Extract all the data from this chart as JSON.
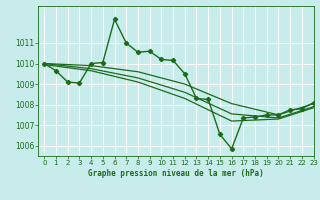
{
  "title": "Graphe pression niveau de la mer (hPa)",
  "bg_color": "#c8ecec",
  "grid_color": "#a8d8d8",
  "line_color": "#1a6b1a",
  "xlim": [
    -0.5,
    23
  ],
  "ylim": [
    1005.5,
    1012.8
  ],
  "yticks": [
    1006,
    1007,
    1008,
    1009,
    1010,
    1011
  ],
  "xticks": [
    0,
    1,
    2,
    3,
    4,
    5,
    6,
    7,
    8,
    9,
    10,
    11,
    12,
    13,
    14,
    15,
    16,
    17,
    18,
    19,
    20,
    21,
    22,
    23
  ],
  "line1_x": [
    0,
    1,
    2,
    3,
    4,
    5,
    6,
    7,
    8,
    9,
    10,
    11,
    12,
    13,
    14,
    15,
    16,
    17,
    18,
    19,
    20,
    21,
    22,
    23
  ],
  "line1_y": [
    1010.0,
    1009.65,
    1009.1,
    1009.05,
    1010.0,
    1010.05,
    1012.15,
    1011.0,
    1010.55,
    1010.6,
    1010.2,
    1010.15,
    1009.5,
    1008.3,
    1008.25,
    1006.55,
    1005.85,
    1007.35,
    1007.4,
    1007.5,
    1007.5,
    1007.75,
    1007.8,
    1008.1
  ],
  "line2_x": [
    0,
    4,
    8,
    12,
    16,
    20,
    23
  ],
  "line2_y": [
    1010.0,
    1009.9,
    1009.6,
    1009.0,
    1008.05,
    1007.5,
    1008.05
  ],
  "line3_x": [
    0,
    4,
    8,
    12,
    16,
    20,
    23
  ],
  "line3_y": [
    1010.0,
    1009.75,
    1009.3,
    1008.6,
    1007.55,
    1007.35,
    1007.9
  ],
  "line4_x": [
    0,
    4,
    8,
    12,
    16,
    20,
    23
  ],
  "line4_y": [
    1009.95,
    1009.65,
    1009.1,
    1008.3,
    1007.2,
    1007.3,
    1007.85
  ]
}
